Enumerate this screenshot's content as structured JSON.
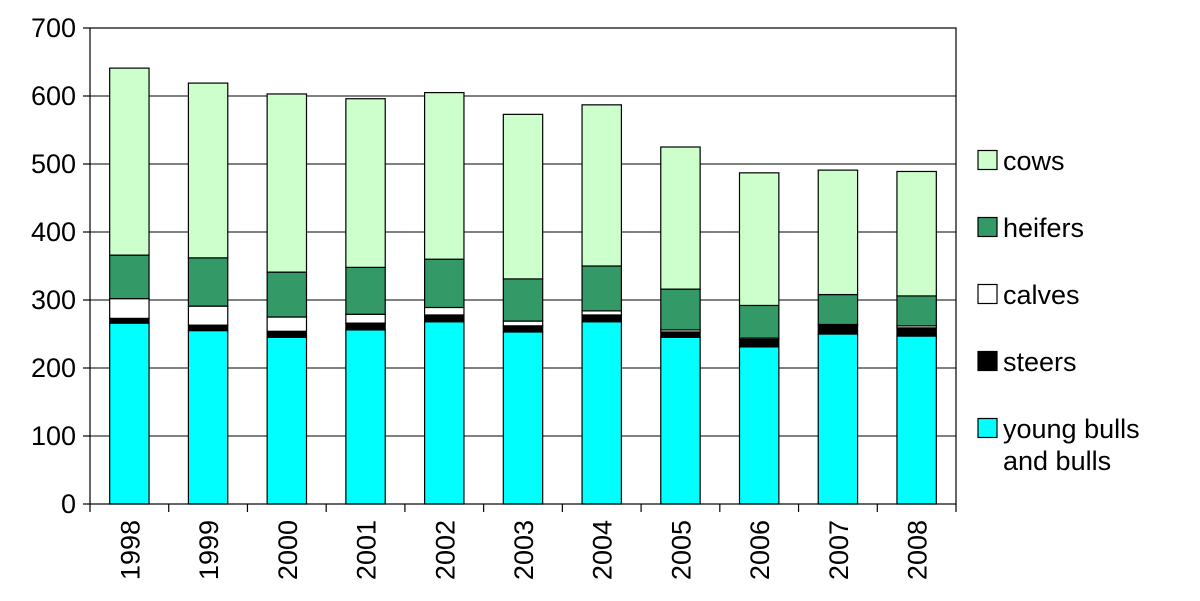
{
  "chart_data": {
    "type": "bar",
    "stacked": true,
    "categories": [
      "1998",
      "1999",
      "2000",
      "2001",
      "2002",
      "2003",
      "2004",
      "2005",
      "2006",
      "2007",
      "2008"
    ],
    "ylim": [
      0,
      700
    ],
    "yticks": [
      0,
      100,
      200,
      300,
      400,
      500,
      600,
      700
    ],
    "ytick_labels": [
      "0",
      "100",
      "200",
      "300",
      "400",
      "500",
      "600",
      "700"
    ],
    "grid": true,
    "legend_position": "right",
    "series": [
      {
        "name": "young bulls and bulls",
        "legend_lines": [
          "young bulls",
          "and bulls"
        ],
        "color": "#00ffff",
        "values": [
          266,
          255,
          245,
          256,
          268,
          253,
          268,
          245,
          231,
          250,
          247
        ]
      },
      {
        "name": "steers",
        "legend_lines": [
          "steers"
        ],
        "color": "#000000",
        "values": [
          7,
          8,
          9,
          10,
          10,
          9,
          10,
          8,
          11,
          13,
          12
        ]
      },
      {
        "name": "calves",
        "legend_lines": [
          "calves"
        ],
        "color": "#ffffff",
        "values": [
          29,
          28,
          21,
          13,
          11,
          7,
          6,
          3,
          2,
          1,
          3
        ]
      },
      {
        "name": "heifers",
        "legend_lines": [
          "heifers"
        ],
        "color": "#339966",
        "values": [
          64,
          71,
          66,
          69,
          71,
          62,
          66,
          60,
          48,
          44,
          44
        ]
      },
      {
        "name": "cows",
        "legend_lines": [
          "cows"
        ],
        "color": "#ccffcc",
        "values": [
          275,
          257,
          262,
          248,
          245,
          242,
          237,
          209,
          195,
          183,
          183
        ]
      }
    ]
  }
}
